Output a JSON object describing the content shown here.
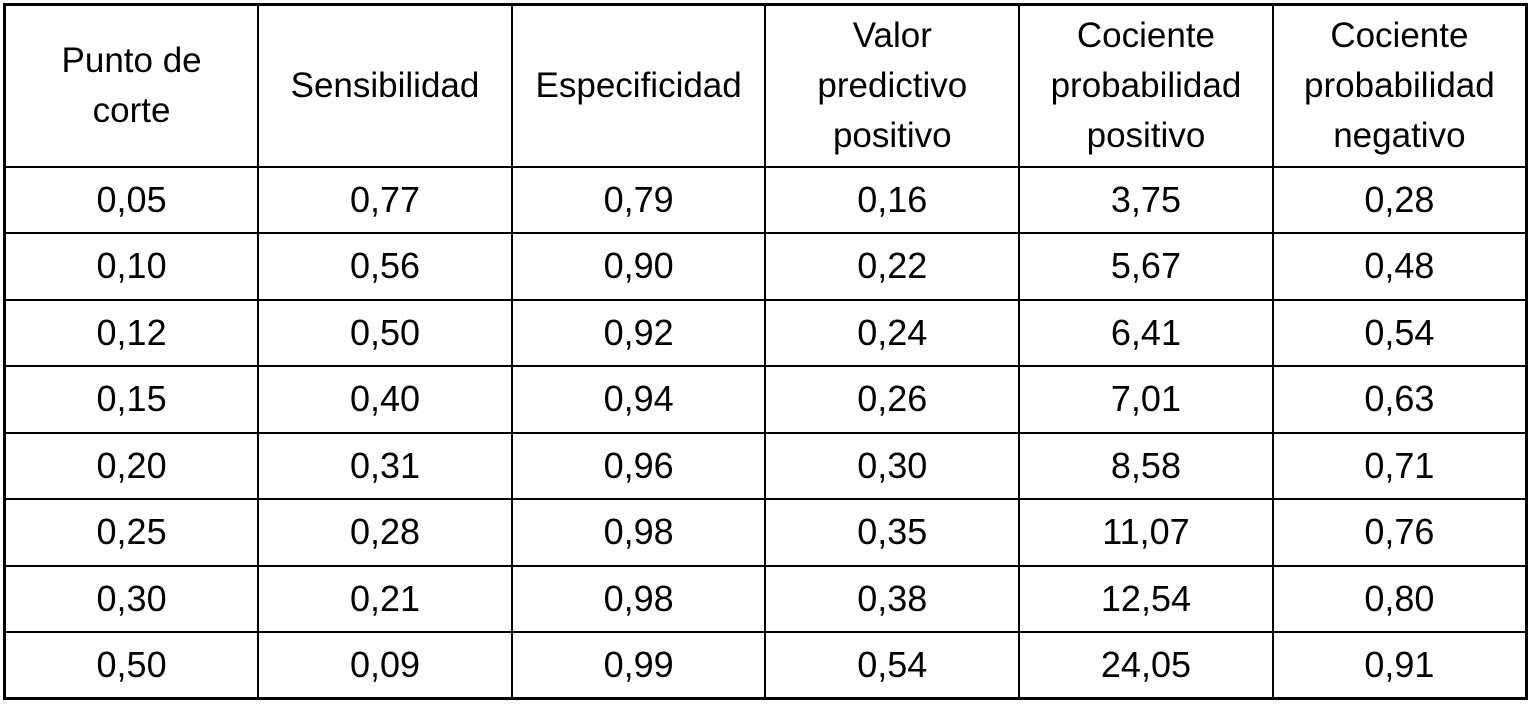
{
  "page": {
    "background_color": "#ffffff",
    "border_color": "#000000",
    "text_color": "#000000"
  },
  "table": {
    "headers": [
      "Punto de\ncorte",
      "Sensibilidad",
      "Especificidad",
      "Valor\npredictivo\npositivo",
      "Cociente\nprobabilidad\npositivo",
      "Cociente\nprobabilidad\nnegativo"
    ],
    "rows": [
      [
        "0,05",
        "0,77",
        "0,79",
        "0,16",
        "3,75",
        "0,28"
      ],
      [
        "0,10",
        "0,56",
        "0,90",
        "0,22",
        "5,67",
        "0,48"
      ],
      [
        "0,12",
        "0,50",
        "0,92",
        "0,24",
        "6,41",
        "0,54"
      ],
      [
        "0,15",
        "0,40",
        "0,94",
        "0,26",
        "7,01",
        "0,63"
      ],
      [
        "0,20",
        "0,31",
        "0,96",
        "0,30",
        "8,58",
        "0,71"
      ],
      [
        "0,25",
        "0,28",
        "0,98",
        "0,35",
        "11,07",
        "0,76"
      ],
      [
        "0,30",
        "0,21",
        "0,98",
        "0,38",
        "12,54",
        "0,80"
      ],
      [
        "0,50",
        "0,09",
        "0,99",
        "0,54",
        "24,05",
        "0,91"
      ]
    ]
  },
  "chart_data": {
    "type": "table",
    "title": "",
    "decimal_separator": ",",
    "columns": [
      "Punto de corte",
      "Sensibilidad",
      "Especificidad",
      "Valor predictivo positivo",
      "Cociente probabilidad positivo",
      "Cociente probabilidad negativo"
    ],
    "rows": [
      [
        0.05,
        0.77,
        0.79,
        0.16,
        3.75,
        0.28
      ],
      [
        0.1,
        0.56,
        0.9,
        0.22,
        5.67,
        0.48
      ],
      [
        0.12,
        0.5,
        0.92,
        0.24,
        6.41,
        0.54
      ],
      [
        0.15,
        0.4,
        0.94,
        0.26,
        7.01,
        0.63
      ],
      [
        0.2,
        0.31,
        0.96,
        0.3,
        8.58,
        0.71
      ],
      [
        0.25,
        0.28,
        0.98,
        0.35,
        11.07,
        0.76
      ],
      [
        0.3,
        0.21,
        0.98,
        0.38,
        12.54,
        0.8
      ],
      [
        0.5,
        0.09,
        0.99,
        0.54,
        24.05,
        0.91
      ]
    ]
  }
}
